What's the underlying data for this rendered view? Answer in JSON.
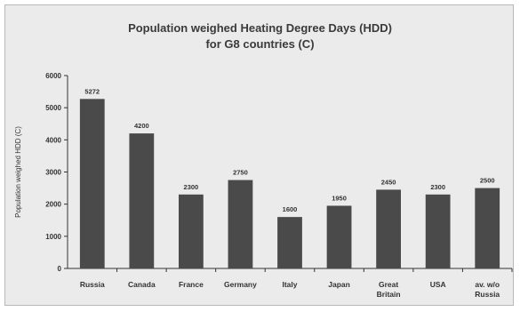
{
  "chart_data": {
    "type": "bar",
    "title_line1": "Population weighed Heating Degree Days (HDD)",
    "title_line2": "for G8 countries (C)",
    "xlabel": "",
    "ylabel": "Population weighed HDD (C)",
    "ylim": [
      0,
      6000
    ],
    "yticks": [
      0,
      1000,
      2000,
      3000,
      4000,
      5000,
      6000
    ],
    "grid": false,
    "legend": "none",
    "bar_color": "#4a4a4a",
    "categories": [
      [
        "Russia"
      ],
      [
        "Canada"
      ],
      [
        "France"
      ],
      [
        "Germany"
      ],
      [
        "Italy"
      ],
      [
        "Japan"
      ],
      [
        "Great",
        "Britain"
      ],
      [
        "USA"
      ],
      [
        "av. w/o",
        "Russia"
      ]
    ],
    "values": [
      5272,
      4200,
      2300,
      2750,
      1600,
      1950,
      2450,
      2300,
      2500
    ],
    "labels": [
      "5272",
      "4200",
      "2300",
      "2750",
      "1600",
      "1950",
      "2450",
      "2300",
      "2500"
    ]
  }
}
